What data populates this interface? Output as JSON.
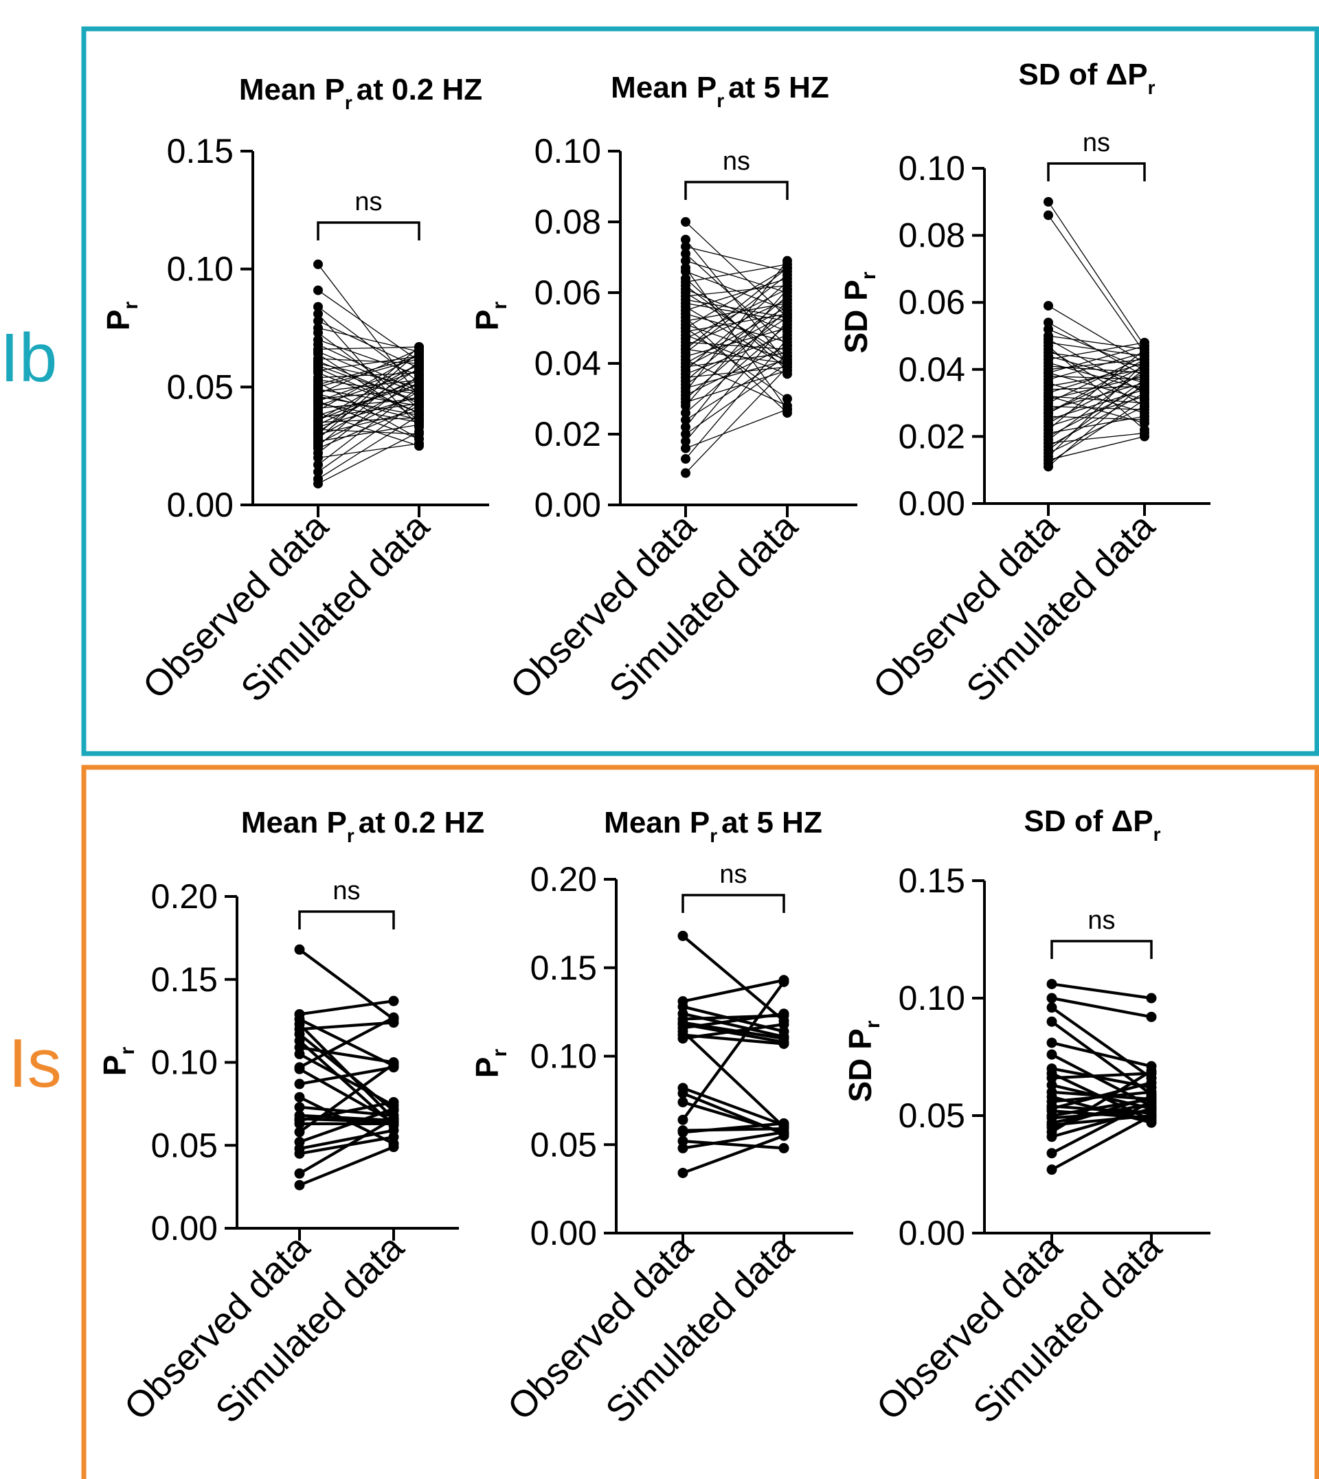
{
  "colors": {
    "Ib": "#1BA8BC",
    "Is": "#F08A2E",
    "ink": "#000000"
  },
  "panels": [
    {
      "label": "Ib",
      "color": "#1BA8BC"
    },
    {
      "label": "Is",
      "color": "#F08A2E"
    }
  ],
  "chart_data": [
    {
      "type": "line",
      "panel": "Ib",
      "title": "Mean Pr at 0.2 HZ",
      "title_main": "Mean P",
      "title_sub": "r",
      "title_rest": "at 0.2 HZ",
      "ylabel_main": "P",
      "ylabel_sub": "r",
      "categories": [
        "Observed data",
        "Simulated data"
      ],
      "ylim": [
        0,
        0.15
      ],
      "yticks": [
        0,
        0.05,
        0.1,
        0.15
      ],
      "ytick_labels": [
        "0.00",
        "0.05",
        "0.10",
        "0.15"
      ],
      "significance": "ns",
      "paired_values": [
        [
          0.102,
          0.046
        ],
        [
          0.091,
          0.061
        ],
        [
          0.084,
          0.052
        ],
        [
          0.081,
          0.033
        ],
        [
          0.078,
          0.058
        ],
        [
          0.075,
          0.065
        ],
        [
          0.073,
          0.041
        ],
        [
          0.07,
          0.055
        ],
        [
          0.068,
          0.048
        ],
        [
          0.066,
          0.067
        ],
        [
          0.064,
          0.036
        ],
        [
          0.062,
          0.06
        ],
        [
          0.06,
          0.05
        ],
        [
          0.059,
          0.044
        ],
        [
          0.057,
          0.063
        ],
        [
          0.056,
          0.039
        ],
        [
          0.054,
          0.056
        ],
        [
          0.053,
          0.047
        ],
        [
          0.052,
          0.028
        ],
        [
          0.05,
          0.062
        ],
        [
          0.049,
          0.042
        ],
        [
          0.048,
          0.053
        ],
        [
          0.047,
          0.066
        ],
        [
          0.046,
          0.038
        ],
        [
          0.045,
          0.049
        ],
        [
          0.044,
          0.059
        ],
        [
          0.043,
          0.035
        ],
        [
          0.042,
          0.057
        ],
        [
          0.041,
          0.045
        ],
        [
          0.04,
          0.064
        ],
        [
          0.039,
          0.025
        ],
        [
          0.038,
          0.051
        ],
        [
          0.037,
          0.043
        ],
        [
          0.036,
          0.06
        ],
        [
          0.035,
          0.037
        ],
        [
          0.034,
          0.054
        ],
        [
          0.033,
          0.046
        ],
        [
          0.032,
          0.03
        ],
        [
          0.031,
          0.058
        ],
        [
          0.03,
          0.04
        ],
        [
          0.029,
          0.052
        ],
        [
          0.028,
          0.065
        ],
        [
          0.027,
          0.034
        ],
        [
          0.026,
          0.048
        ],
        [
          0.025,
          0.061
        ],
        [
          0.024,
          0.042
        ],
        [
          0.022,
          0.055
        ],
        [
          0.02,
          0.026
        ],
        [
          0.017,
          0.05
        ],
        [
          0.014,
          0.044
        ],
        [
          0.011,
          0.038
        ],
        [
          0.009,
          0.031
        ],
        [
          0.065,
          0.047
        ],
        [
          0.058,
          0.039
        ],
        [
          0.051,
          0.063
        ],
        [
          0.044,
          0.028
        ],
        [
          0.036,
          0.053
        ],
        [
          0.03,
          0.067
        ],
        [
          0.061,
          0.043
        ],
        [
          0.047,
          0.036
        ]
      ]
    },
    {
      "type": "line",
      "panel": "Ib",
      "title": "Mean Pr at 5 HZ",
      "title_main": "Mean P",
      "title_sub": "r",
      "title_rest": "at 5 HZ",
      "ylabel_main": "P",
      "ylabel_sub": "r",
      "categories": [
        "Observed data",
        "Simulated data"
      ],
      "ylim": [
        0,
        0.1
      ],
      "yticks": [
        0,
        0.02,
        0.04,
        0.06,
        0.08,
        0.1
      ],
      "ytick_labels": [
        "0.00",
        "0.02",
        "0.04",
        "0.06",
        "0.08",
        "0.10"
      ],
      "significance": "ns",
      "paired_values": [
        [
          0.08,
          0.053
        ],
        [
          0.075,
          0.04
        ],
        [
          0.073,
          0.066
        ],
        [
          0.071,
          0.045
        ],
        [
          0.069,
          0.06
        ],
        [
          0.067,
          0.027
        ],
        [
          0.066,
          0.055
        ],
        [
          0.064,
          0.038
        ],
        [
          0.063,
          0.068
        ],
        [
          0.061,
          0.049
        ],
        [
          0.06,
          0.042
        ],
        [
          0.059,
          0.062
        ],
        [
          0.057,
          0.052
        ],
        [
          0.056,
          0.039
        ],
        [
          0.055,
          0.064
        ],
        [
          0.054,
          0.046
        ],
        [
          0.053,
          0.026
        ],
        [
          0.052,
          0.057
        ],
        [
          0.051,
          0.041
        ],
        [
          0.05,
          0.067
        ],
        [
          0.049,
          0.054
        ],
        [
          0.048,
          0.037
        ],
        [
          0.047,
          0.061
        ],
        [
          0.046,
          0.044
        ],
        [
          0.045,
          0.058
        ],
        [
          0.044,
          0.04
        ],
        [
          0.043,
          0.065
        ],
        [
          0.042,
          0.05
        ],
        [
          0.041,
          0.028
        ],
        [
          0.04,
          0.056
        ],
        [
          0.039,
          0.043
        ],
        [
          0.038,
          0.063
        ],
        [
          0.037,
          0.048
        ],
        [
          0.036,
          0.039
        ],
        [
          0.035,
          0.059
        ],
        [
          0.034,
          0.053
        ],
        [
          0.033,
          0.041
        ],
        [
          0.032,
          0.069
        ],
        [
          0.031,
          0.045
        ],
        [
          0.03,
          0.055
        ],
        [
          0.029,
          0.038
        ],
        [
          0.028,
          0.061
        ],
        [
          0.026,
          0.051
        ],
        [
          0.024,
          0.042
        ],
        [
          0.022,
          0.058
        ],
        [
          0.02,
          0.04
        ],
        [
          0.018,
          0.052
        ],
        [
          0.016,
          0.027
        ],
        [
          0.013,
          0.047
        ],
        [
          0.009,
          0.039
        ],
        [
          0.062,
          0.04
        ],
        [
          0.058,
          0.053
        ],
        [
          0.05,
          0.03
        ],
        [
          0.044,
          0.067
        ],
        [
          0.039,
          0.054
        ]
      ]
    },
    {
      "type": "line",
      "panel": "Ib",
      "title": "SD of ΔPr",
      "title_main": "SD of ΔP",
      "title_sub": "r",
      "title_rest": "",
      "ylabel_main": "SD P",
      "ylabel_sub": "r",
      "categories": [
        "Observed data",
        "Simulated data"
      ],
      "ylim": [
        0,
        0.1
      ],
      "yticks": [
        0,
        0.02,
        0.04,
        0.06,
        0.08,
        0.1
      ],
      "ytick_labels": [
        "0.00",
        "0.02",
        "0.04",
        "0.06",
        "0.08",
        "0.10"
      ],
      "significance": "ns",
      "paired_values": [
        [
          0.09,
          0.047
        ],
        [
          0.086,
          0.045
        ],
        [
          0.059,
          0.042
        ],
        [
          0.054,
          0.038
        ],
        [
          0.052,
          0.04
        ],
        [
          0.05,
          0.046
        ],
        [
          0.049,
          0.033
        ],
        [
          0.048,
          0.044
        ],
        [
          0.046,
          0.029
        ],
        [
          0.045,
          0.041
        ],
        [
          0.044,
          0.036
        ],
        [
          0.043,
          0.048
        ],
        [
          0.042,
          0.034
        ],
        [
          0.041,
          0.039
        ],
        [
          0.04,
          0.043
        ],
        [
          0.039,
          0.031
        ],
        [
          0.038,
          0.037
        ],
        [
          0.037,
          0.045
        ],
        [
          0.036,
          0.027
        ],
        [
          0.035,
          0.04
        ],
        [
          0.034,
          0.035
        ],
        [
          0.033,
          0.042
        ],
        [
          0.032,
          0.03
        ],
        [
          0.031,
          0.038
        ],
        [
          0.03,
          0.044
        ],
        [
          0.029,
          0.028
        ],
        [
          0.028,
          0.036
        ],
        [
          0.027,
          0.041
        ],
        [
          0.026,
          0.025
        ],
        [
          0.025,
          0.034
        ],
        [
          0.024,
          0.039
        ],
        [
          0.023,
          0.032
        ],
        [
          0.022,
          0.046
        ],
        [
          0.021,
          0.026
        ],
        [
          0.02,
          0.035
        ],
        [
          0.019,
          0.04
        ],
        [
          0.018,
          0.021
        ],
        [
          0.017,
          0.033
        ],
        [
          0.016,
          0.037
        ],
        [
          0.015,
          0.029
        ],
        [
          0.014,
          0.042
        ],
        [
          0.013,
          0.02
        ],
        [
          0.012,
          0.031
        ],
        [
          0.011,
          0.036
        ],
        [
          0.047,
          0.022
        ],
        [
          0.039,
          0.047
        ],
        [
          0.032,
          0.024
        ],
        [
          0.027,
          0.043
        ]
      ]
    },
    {
      "type": "line",
      "panel": "Is",
      "title": "Mean Pr at 0.2 HZ",
      "title_main": "Mean P",
      "title_sub": "r",
      "title_rest": "at 0.2 HZ",
      "ylabel_main": "P",
      "ylabel_sub": "r",
      "categories": [
        "Observed data",
        "Simulated data"
      ],
      "ylim": [
        0,
        0.2
      ],
      "yticks": [
        0,
        0.05,
        0.1,
        0.15,
        0.2
      ],
      "ytick_labels": [
        "0.00",
        "0.05",
        "0.10",
        "0.15",
        "0.20"
      ],
      "significance": "ns",
      "paired_values": [
        [
          0.168,
          0.126
        ],
        [
          0.129,
          0.137
        ],
        [
          0.126,
          0.098
        ],
        [
          0.123,
          0.066
        ],
        [
          0.12,
          0.124
        ],
        [
          0.117,
          0.071
        ],
        [
          0.113,
          0.062
        ],
        [
          0.109,
          0.1
        ],
        [
          0.105,
          0.074
        ],
        [
          0.097,
          0.127
        ],
        [
          0.096,
          0.064
        ],
        [
          0.087,
          0.097
        ],
        [
          0.079,
          0.051
        ],
        [
          0.073,
          0.068
        ],
        [
          0.068,
          0.065
        ],
        [
          0.066,
          0.064
        ],
        [
          0.065,
          0.076
        ],
        [
          0.063,
          0.063
        ],
        [
          0.058,
          0.099
        ],
        [
          0.052,
          0.072
        ],
        [
          0.048,
          0.059
        ],
        [
          0.045,
          0.055
        ],
        [
          0.033,
          0.066
        ],
        [
          0.026,
          0.049
        ]
      ]
    },
    {
      "type": "line",
      "panel": "Is",
      "title": "Mean Pr at 5 HZ",
      "title_main": "Mean P",
      "title_sub": "r",
      "title_rest": "at 5 HZ",
      "ylabel_main": "P",
      "ylabel_sub": "r",
      "categories": [
        "Observed data",
        "Simulated data"
      ],
      "ylim": [
        0,
        0.2
      ],
      "yticks": [
        0,
        0.05,
        0.1,
        0.15,
        0.2
      ],
      "ytick_labels": [
        "0.00",
        "0.05",
        "0.10",
        "0.15",
        "0.20"
      ],
      "significance": "ns",
      "paired_values": [
        [
          0.168,
          0.12
        ],
        [
          0.131,
          0.143
        ],
        [
          0.128,
          0.114
        ],
        [
          0.124,
          0.111
        ],
        [
          0.121,
          0.123
        ],
        [
          0.119,
          0.11
        ],
        [
          0.118,
          0.108
        ],
        [
          0.116,
          0.124
        ],
        [
          0.114,
          0.06
        ],
        [
          0.112,
          0.107
        ],
        [
          0.11,
          0.118
        ],
        [
          0.082,
          0.061
        ],
        [
          0.079,
          0.056
        ],
        [
          0.074,
          0.057
        ],
        [
          0.064,
          0.142
        ],
        [
          0.058,
          0.059
        ],
        [
          0.057,
          0.062
        ],
        [
          0.052,
          0.048
        ],
        [
          0.048,
          0.057
        ],
        [
          0.034,
          0.055
        ]
      ]
    },
    {
      "type": "line",
      "panel": "Is",
      "title": "SD of ΔPr",
      "title_main": "SD of ΔP",
      "title_sub": "r",
      "title_rest": "",
      "ylabel_main": "SD P",
      "ylabel_sub": "r",
      "categories": [
        "Observed data",
        "Simulated data"
      ],
      "ylim": [
        0,
        0.15
      ],
      "yticks": [
        0,
        0.05,
        0.1,
        0.15
      ],
      "ytick_labels": [
        "0.00",
        "0.05",
        "0.10",
        "0.15"
      ],
      "significance": "ns",
      "paired_values": [
        [
          0.106,
          0.1
        ],
        [
          0.1,
          0.092
        ],
        [
          0.096,
          0.066
        ],
        [
          0.09,
          0.059
        ],
        [
          0.081,
          0.071
        ],
        [
          0.076,
          0.054
        ],
        [
          0.07,
          0.062
        ],
        [
          0.068,
          0.048
        ],
        [
          0.066,
          0.068
        ],
        [
          0.063,
          0.053
        ],
        [
          0.06,
          0.057
        ],
        [
          0.058,
          0.047
        ],
        [
          0.056,
          0.06
        ],
        [
          0.054,
          0.051
        ],
        [
          0.053,
          0.064
        ],
        [
          0.052,
          0.049
        ],
        [
          0.05,
          0.057
        ],
        [
          0.049,
          0.052
        ],
        [
          0.047,
          0.055
        ],
        [
          0.046,
          0.05
        ],
        [
          0.045,
          0.058
        ],
        [
          0.043,
          0.069
        ],
        [
          0.041,
          0.053
        ],
        [
          0.034,
          0.056
        ],
        [
          0.027,
          0.05
        ]
      ]
    }
  ]
}
